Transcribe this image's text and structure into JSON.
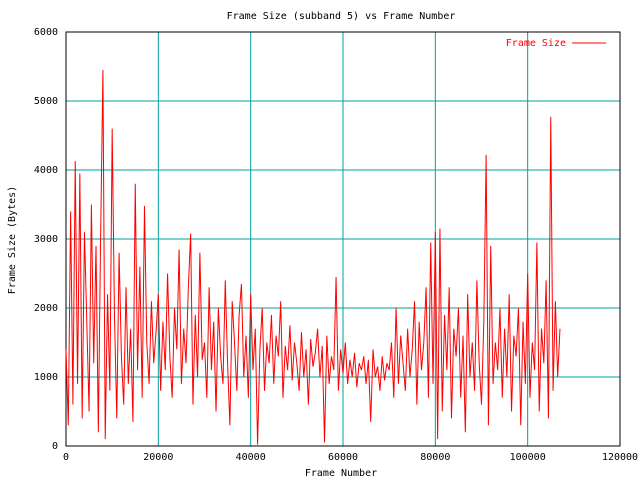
{
  "chart_data": {
    "type": "line",
    "title": "Frame Size (subband 5) vs Frame Number",
    "xlabel": "Frame Number",
    "ylabel": "Frame Size (Bytes)",
    "xlim": [
      0,
      120000
    ],
    "ylim": [
      0,
      6000
    ],
    "xticks": [
      0,
      20000,
      40000,
      60000,
      80000,
      100000,
      120000
    ],
    "yticks": [
      0,
      1000,
      2000,
      3000,
      4000,
      5000,
      6000
    ],
    "grid": true,
    "grid_color": "#00a0a0",
    "legend": "top-right",
    "x": [
      0,
      500,
      1000,
      1500,
      2000,
      2500,
      3000,
      3500,
      4000,
      4500,
      5000,
      5500,
      6000,
      6500,
      7000,
      7500,
      8000,
      8500,
      9000,
      9500,
      10000,
      10500,
      11000,
      11500,
      12000,
      12500,
      13000,
      13500,
      14000,
      14500,
      15000,
      15500,
      16000,
      16500,
      17000,
      17500,
      18000,
      18500,
      19000,
      19500,
      20000,
      20500,
      21000,
      21500,
      22000,
      22500,
      23000,
      23500,
      24000,
      24500,
      25000,
      25500,
      26000,
      26500,
      27000,
      27500,
      28000,
      28500,
      29000,
      29500,
      30000,
      30500,
      31000,
      31500,
      32000,
      32500,
      33000,
      33500,
      34000,
      34500,
      35000,
      35500,
      36000,
      36500,
      37000,
      37500,
      38000,
      38500,
      39000,
      39500,
      40000,
      40500,
      41000,
      41500,
      42000,
      42500,
      43000,
      43500,
      44000,
      44500,
      45000,
      45500,
      46000,
      46500,
      47000,
      47500,
      48000,
      48500,
      49000,
      49500,
      50000,
      50500,
      51000,
      51500,
      52000,
      52500,
      53000,
      53500,
      54000,
      54500,
      55000,
      55500,
      56000,
      56500,
      57000,
      57500,
      58000,
      58500,
      59000,
      59500,
      60000,
      60500,
      61000,
      61500,
      62000,
      62500,
      63000,
      63500,
      64000,
      64500,
      65000,
      65500,
      66000,
      66500,
      67000,
      67500,
      68000,
      68500,
      69000,
      69500,
      70000,
      70500,
      71000,
      71500,
      72000,
      72500,
      73000,
      73500,
      74000,
      74500,
      75000,
      75500,
      76000,
      76500,
      77000,
      77500,
      78000,
      78500,
      79000,
      79500,
      80000,
      80500,
      81000,
      81500,
      82000,
      82500,
      83000,
      83500,
      84000,
      84500,
      85000,
      85500,
      86000,
      86500,
      87000,
      87500,
      88000,
      88500,
      89000,
      89500,
      90000,
      90500,
      91000,
      91500,
      92000,
      92500,
      93000,
      93500,
      94000,
      94500,
      95000,
      95500,
      96000,
      96500,
      97000,
      97500,
      98000,
      98500,
      99000,
      99500,
      100000,
      100500,
      101000,
      101500,
      102000,
      102500,
      103000,
      103500,
      104000,
      104500,
      105000,
      105500,
      106000,
      106500,
      107000
    ],
    "series": [
      {
        "name": "Frame Size",
        "color": "#ff0000",
        "values": [
          1400,
          300,
          3400,
          600,
          4130,
          900,
          3950,
          400,
          3100,
          1800,
          500,
          3500,
          1200,
          2900,
          200,
          3050,
          5450,
          100,
          2200,
          800,
          4600,
          1900,
          400,
          2800,
          1300,
          600,
          2300,
          900,
          1700,
          350,
          3800,
          1100,
          2600,
          700,
          3480,
          1500,
          900,
          2100,
          1200,
          1650,
          2200,
          800,
          1800,
          1100,
          2500,
          1300,
          700,
          2000,
          1400,
          2850,
          900,
          1700,
          1200,
          2300,
          3080,
          600,
          1900,
          1000,
          2800,
          1250,
          1500,
          700,
          2300,
          1100,
          1800,
          500,
          2000,
          1300,
          900,
          2400,
          1200,
          300,
          2100,
          1500,
          800,
          1900,
          2350,
          1000,
          1600,
          700,
          2200,
          1100,
          1700,
          20,
          1400,
          2000,
          800,
          1500,
          1200,
          1900,
          900,
          1600,
          1300,
          2100,
          700,
          1450,
          1100,
          1750,
          950,
          1500,
          1200,
          800,
          1650,
          1000,
          1400,
          600,
          1550,
          1150,
          1350,
          1700,
          1000,
          1450,
          50,
          1600,
          900,
          1300,
          1100,
          2450,
          800,
          1400,
          1050,
          1500,
          900,
          1250,
          1000,
          1350,
          850,
          1200,
          1100,
          1300,
          900,
          1250,
          350,
          1400,
          1000,
          1150,
          800,
          1300,
          950,
          1200,
          1100,
          1500,
          700,
          2000,
          900,
          1600,
          1200,
          800,
          1700,
          1000,
          1400,
          2100,
          600,
          1800,
          1100,
          1500,
          2300,
          700,
          2950,
          900,
          3100,
          100,
          3150,
          500,
          1900,
          1100,
          2300,
          400,
          1700,
          1300,
          2000,
          700,
          1600,
          200,
          2200,
          1000,
          1500,
          800,
          2400,
          1200,
          600,
          1800,
          4220,
          300,
          2900,
          900,
          1500,
          1100,
          2000,
          700,
          1700,
          1000,
          2200,
          500,
          1600,
          1300,
          2000,
          300,
          1800,
          900,
          2500,
          700,
          1500,
          1100,
          2950,
          500,
          1700,
          1200,
          2400,
          400,
          4770,
          800,
          2100,
          1000,
          1700
        ]
      }
    ]
  }
}
